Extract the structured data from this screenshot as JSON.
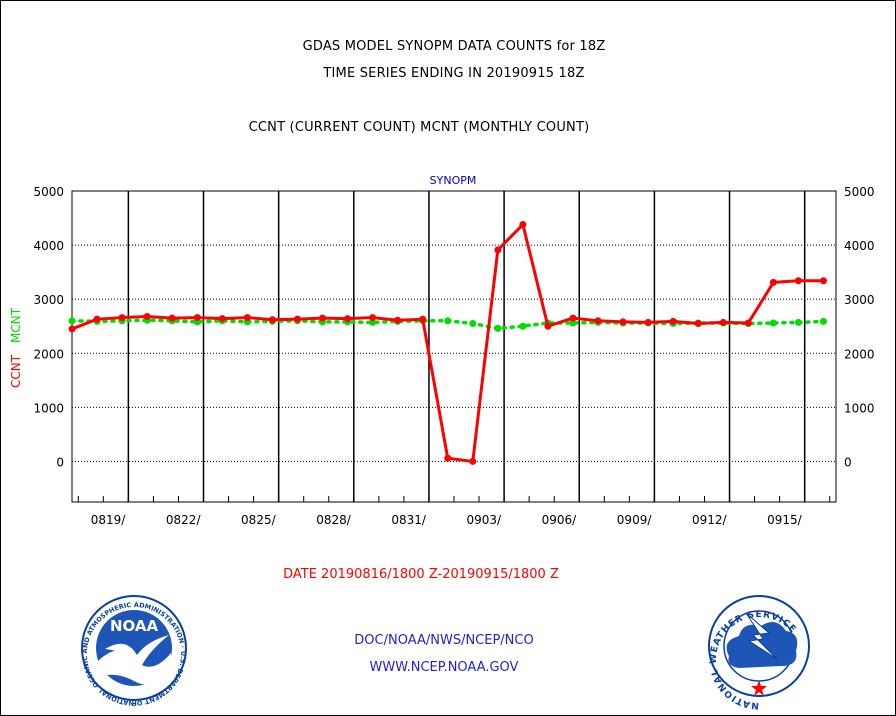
{
  "header": {
    "title_line1": "GDAS MODEL SYNOPM DATA COUNTS for 18Z",
    "title_line2": "TIME SERIES ENDING IN 20190915 18Z",
    "subtitle": "CCNT (CURRENT COUNT) MCNT (MONTHLY COUNT)"
  },
  "chart_data": {
    "type": "line",
    "title": "SYNOPM",
    "ylabel_left": [
      "CCNT",
      "MCNT"
    ],
    "ylim": [
      -750,
      5000
    ],
    "yticks": [
      0,
      1000,
      2000,
      3000,
      4000,
      5000
    ],
    "xlim": [
      0,
      30.5
    ],
    "xtick_positions": [
      2.25,
      5.25,
      8.25,
      11.25,
      14.25,
      17.25,
      20.25,
      23.25,
      26.25,
      29.25
    ],
    "xtick_labels": [
      "0819/",
      "0822/",
      "0825/",
      "0828/",
      "0831/",
      "0903/",
      "0906/",
      "0909/",
      "0912/",
      "0915/"
    ],
    "grid": true,
    "colors": {
      "ccnt": "#ff0000",
      "mcnt": "#00dd00",
      "title": "#0000cc"
    },
    "series": [
      {
        "name": "CCNT",
        "x": [
          0,
          1,
          2,
          3,
          4,
          5,
          6,
          7,
          8,
          9,
          10,
          11,
          12,
          13,
          14,
          15,
          16,
          17,
          18,
          19,
          20,
          21,
          22,
          23,
          24,
          25,
          26,
          27,
          28,
          29,
          30
        ],
        "values": [
          2450,
          2630,
          2660,
          2680,
          2650,
          2660,
          2640,
          2660,
          2620,
          2630,
          2650,
          2640,
          2660,
          2610,
          2630,
          60,
          0,
          3910,
          4380,
          2500,
          2650,
          2600,
          2580,
          2570,
          2590,
          2550,
          2570,
          2560,
          3310,
          3340,
          3340
        ]
      },
      {
        "name": "MCNT",
        "x": [
          0,
          1,
          2,
          3,
          4,
          5,
          6,
          7,
          8,
          9,
          10,
          11,
          12,
          13,
          14,
          15,
          16,
          17,
          18,
          19,
          20,
          21,
          22,
          23,
          24,
          25,
          26,
          27,
          28,
          29,
          30
        ],
        "values": [
          2600,
          2590,
          2600,
          2610,
          2600,
          2580,
          2600,
          2580,
          2590,
          2600,
          2580,
          2580,
          2570,
          2590,
          2600,
          2600,
          2550,
          2460,
          2500,
          2560,
          2560,
          2570,
          2560,
          2560,
          2550,
          2560,
          2560,
          2550,
          2560,
          2570,
          2590
        ]
      }
    ],
    "date_range": "DATE 20190816/1800 Z-20190915/1800 Z"
  },
  "footer": {
    "credit_line1": "DOC/NOAA/NWS/NCEP/NCO",
    "credit_line2": "WWW.NCEP.NOAA.GOV",
    "noaa_logo_text": "NOAA",
    "noaa_ring_text": "NATIONAL OCEANIC AND ATMOSPHERIC ADMINISTRATION · U.S. DEPARTMENT OF COMMERCE ·",
    "nws_ring_text": "NATIONAL WEATHER SERVICE",
    "noaa_logo_icon": "noaa-logo",
    "nws_logo_icon": "nws-logo"
  }
}
